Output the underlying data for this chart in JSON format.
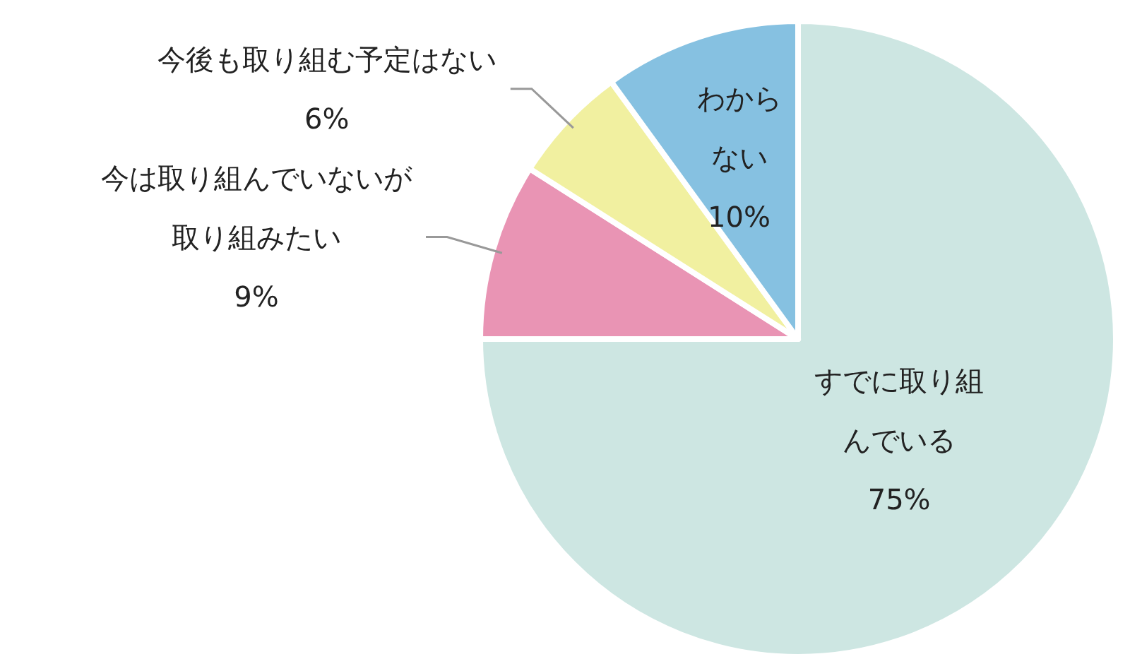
{
  "chart_data": {
    "type": "pie",
    "categories": [
      "すでに取り組んでいる",
      "今は取り組んでいないが取り組みたい",
      "今後も取り組む予定はない",
      "わからない"
    ],
    "values": [
      75,
      9,
      6,
      10
    ],
    "colors": [
      "#cde6e2",
      "#e994b4",
      "#f1f0a0",
      "#86c1e1"
    ],
    "value_labels": [
      "75%",
      "9%",
      "6%",
      "10%"
    ]
  }
}
